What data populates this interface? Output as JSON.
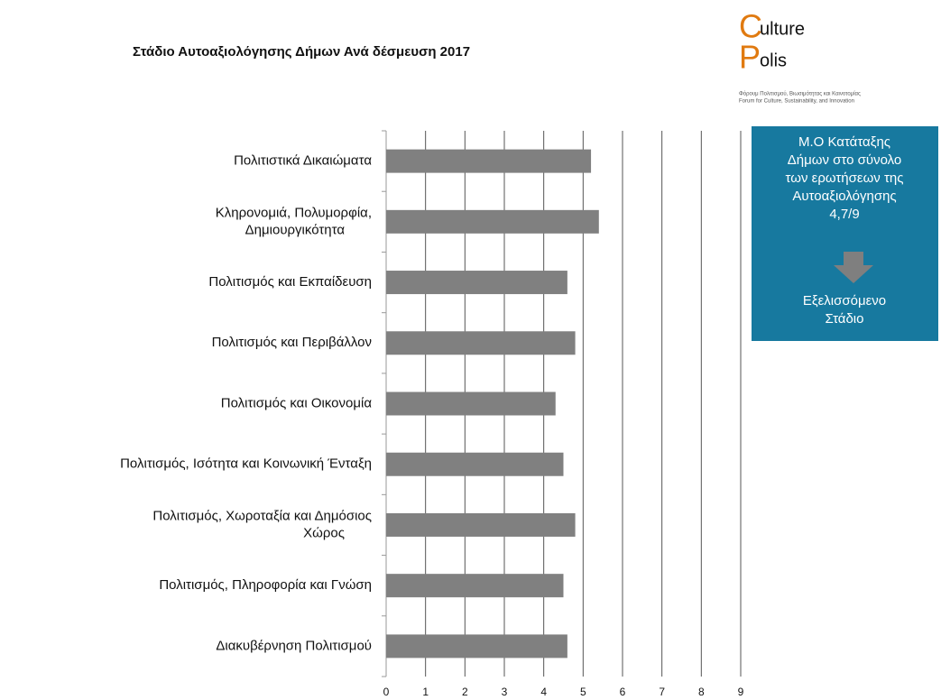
{
  "chart_data": {
    "type": "barh",
    "title": "Στάδιο Αυτοαξιολόγησης  Δήμων Ανά δέσμευση 2017",
    "categories": [
      "Πολιτιστικά  Δικαιώματα",
      "Κληρονομιά,  Πολυμορφία,\nΔημιουργικότητα",
      "Πολιτισμός  και Εκπαίδευση",
      "Πολιτισμός  και Περιβάλλον",
      "Πολιτισμός  και Οικονομία",
      "Πολιτισμός,  Ισότητα  και Κοινωνική  Ένταξη",
      "Πολιτισμός,  Χωροταξία και Δημόσιος\nΧώρος",
      "Πολιτισμός,  Πληροφορία  και Γνώση",
      "Διακυβέρνηση Πολιτισμού"
    ],
    "values": [
      5.2,
      5.4,
      4.6,
      4.8,
      4.3,
      4.5,
      4.8,
      4.5,
      4.6
    ],
    "color": "#808080",
    "xlim": [
      0,
      9
    ],
    "xticks": [
      0,
      1,
      2,
      3,
      4,
      5,
      6,
      7,
      8,
      9
    ],
    "grid": true,
    "annotation": {
      "lines": [
        "Μ.Ο Κατάταξης",
        "Δήμων στο σύνολο",
        "των ερωτήσεων της",
        "Αυτοαξιολόγησης",
        "4,7/9"
      ],
      "result": [
        "Εξελισσόμενο",
        "Στάδιο"
      ],
      "color": "#17799f"
    }
  },
  "logo": {
    "lines": [
      [
        "C",
        "ulture"
      ],
      [
        "P",
        "olis"
      ]
    ],
    "tagline": [
      "Φόρουμ Πολιτισμού, Βιωσιμότητας και Καινοτομίας",
      "Forum for Culture, Sustainability, and Innovation"
    ]
  }
}
